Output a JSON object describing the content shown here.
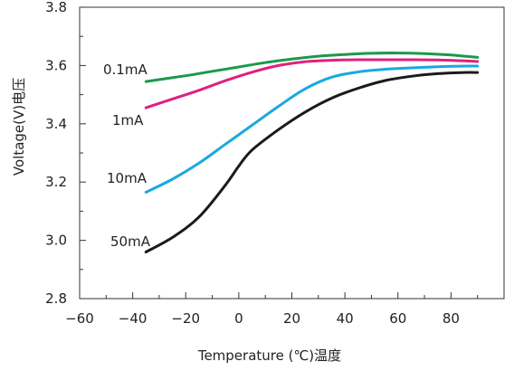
{
  "chart_data": {
    "type": "line",
    "title": "",
    "xlabel": "Temperature (℃)温度",
    "ylabel": "Voltage(V)电压",
    "xlim": [
      -60,
      100
    ],
    "ylim": [
      2.8,
      3.8
    ],
    "xticks": [
      -60,
      -40,
      -20,
      0,
      20,
      40,
      60,
      80
    ],
    "xtick_labels": [
      "−60",
      "−40",
      "−20",
      "0",
      "20",
      "40",
      "60",
      "80"
    ],
    "yticks": [
      2.8,
      3.0,
      3.2,
      3.4,
      3.6,
      3.8
    ],
    "ytick_labels": [
      "2.8",
      "3.0",
      "3.2",
      "3.4",
      "3.6",
      "3.8"
    ],
    "grid": false,
    "legend": "inline labels at left of each curve",
    "series": [
      {
        "name": "0.1mA",
        "color": "#1a9a4a",
        "x": [
          -35,
          -20,
          -10,
          0,
          10,
          20,
          30,
          40,
          50,
          60,
          70,
          80,
          90
        ],
        "y": [
          3.545,
          3.565,
          3.58,
          3.595,
          3.61,
          3.622,
          3.632,
          3.638,
          3.642,
          3.643,
          3.641,
          3.636,
          3.628
        ]
      },
      {
        "name": "1mA",
        "color": "#e0207f",
        "x": [
          -35,
          -25,
          -15,
          -5,
          5,
          15,
          25,
          35,
          45,
          55,
          65,
          75,
          85,
          90
        ],
        "y": [
          3.455,
          3.485,
          3.515,
          3.548,
          3.577,
          3.6,
          3.613,
          3.618,
          3.62,
          3.62,
          3.62,
          3.619,
          3.616,
          3.614
        ]
      },
      {
        "name": "10mA",
        "color": "#19a9e0",
        "x": [
          -35,
          -25,
          -15,
          -5,
          5,
          15,
          25,
          35,
          45,
          55,
          65,
          75,
          85,
          90
        ],
        "y": [
          3.165,
          3.21,
          3.265,
          3.33,
          3.395,
          3.46,
          3.52,
          3.56,
          3.578,
          3.587,
          3.592,
          3.596,
          3.598,
          3.598
        ]
      },
      {
        "name": "50mA",
        "color": "#1a1a1a",
        "x": [
          -35,
          -25,
          -15,
          -5,
          0,
          5,
          15,
          25,
          35,
          45,
          55,
          65,
          75,
          85,
          90
        ],
        "y": [
          2.96,
          3.01,
          3.08,
          3.19,
          3.255,
          3.31,
          3.38,
          3.44,
          3.488,
          3.522,
          3.548,
          3.563,
          3.572,
          3.576,
          3.576
        ]
      }
    ]
  }
}
